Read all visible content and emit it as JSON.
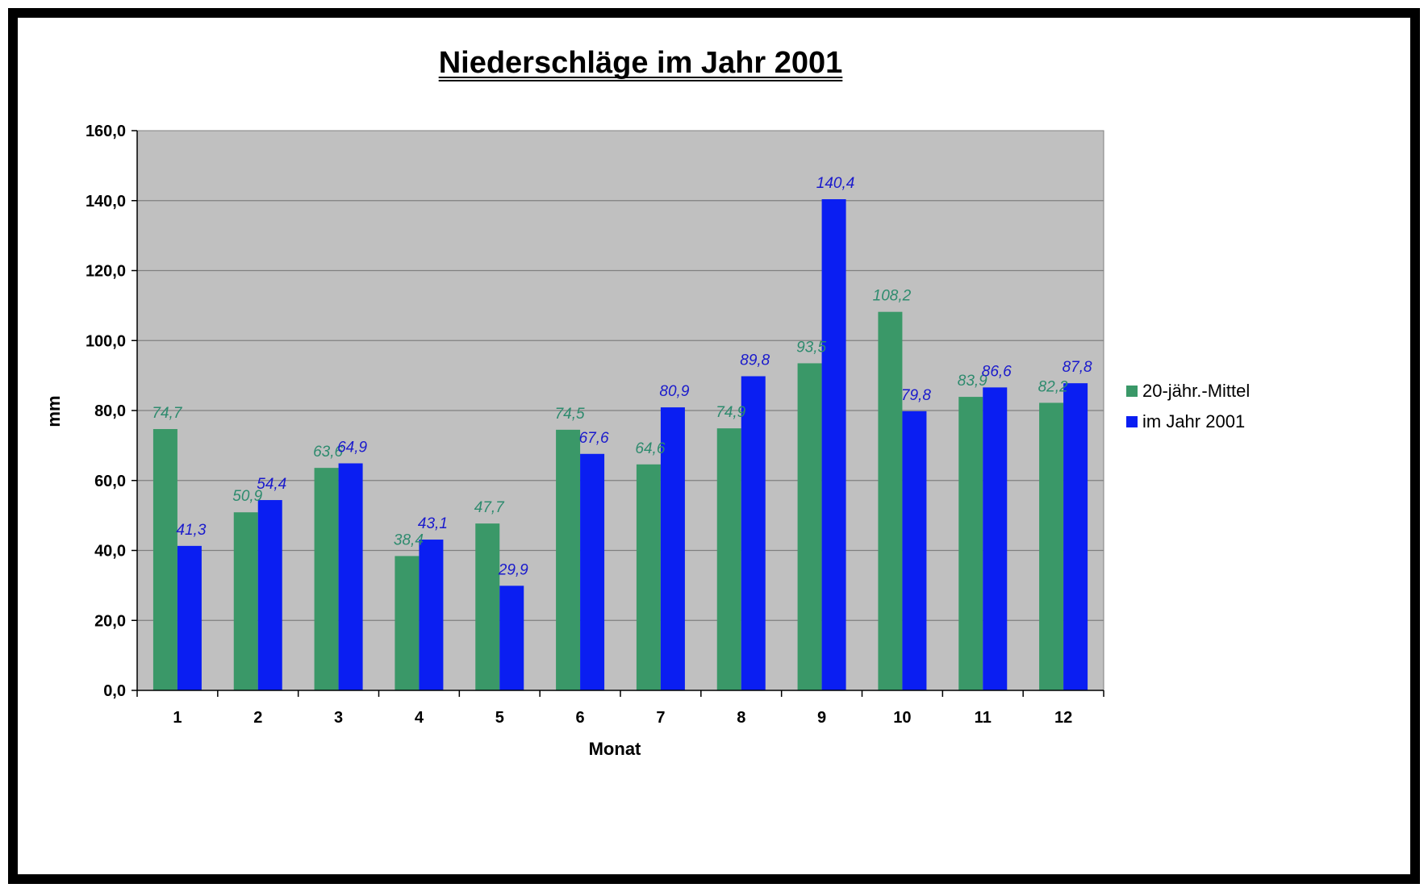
{
  "chart_data": {
    "type": "bar",
    "title": "Niederschläge im Jahr 2001",
    "xlabel": "Monat",
    "ylabel": "mm",
    "categories": [
      "1",
      "2",
      "3",
      "4",
      "5",
      "6",
      "7",
      "8",
      "9",
      "10",
      "11",
      "12"
    ],
    "series": [
      {
        "name": "20-jähr.-Mittel",
        "color": "#3A9868",
        "label_color": "#2E8B6E",
        "values": [
          74.7,
          50.9,
          63.6,
          38.4,
          47.7,
          74.5,
          64.6,
          74.9,
          93.5,
          108.2,
          83.9,
          82.2
        ],
        "labels": [
          "74,7",
          "50,9",
          "63,6",
          "38,4",
          "47,7",
          "74,5",
          "64,6",
          "74,9",
          "93,5",
          "108,2",
          "83,9",
          "82,2"
        ]
      },
      {
        "name": "im Jahr 2001",
        "color": "#0A1EF2",
        "label_color": "#1A1ACC",
        "values": [
          41.3,
          54.4,
          64.9,
          43.1,
          29.9,
          67.6,
          80.9,
          89.8,
          140.4,
          79.8,
          86.6,
          87.8
        ],
        "labels": [
          "41,3",
          "54,4",
          "64,9",
          "43,1",
          "29,9",
          "67,6",
          "80,9",
          "89,8",
          "140,4",
          "79,8",
          "86,6",
          "87,8"
        ]
      }
    ],
    "ylim": [
      0,
      160
    ],
    "yticks": [
      0,
      20,
      40,
      60,
      80,
      100,
      120,
      140,
      160
    ],
    "ytick_labels": [
      "0,0",
      "20,0",
      "40,0",
      "60,0",
      "80,0",
      "100,0",
      "120,0",
      "140,0",
      "160,0"
    ],
    "grid": true,
    "plot_background": "#C0C0C0",
    "legend_position": "right"
  }
}
